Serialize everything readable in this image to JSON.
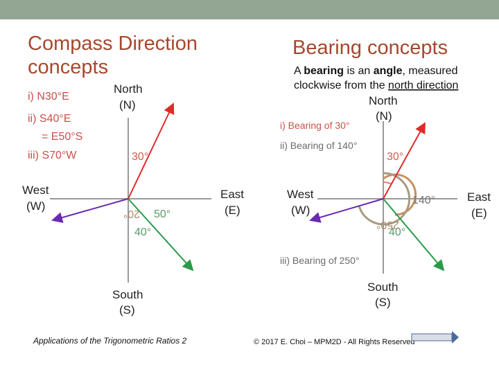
{
  "left": {
    "title": [
      "Compass Direction",
      "concepts"
    ],
    "examples": [
      "i) N30°E",
      "ii) S40°E",
      "= E50°S",
      "iii) S70°W"
    ],
    "north": [
      "North",
      "(N)"
    ],
    "west": [
      "West",
      "(W)"
    ],
    "east": [
      "East",
      "(E)"
    ],
    "south": [
      "South",
      "(S)"
    ],
    "angles": [
      "30°",
      "50°",
      "40°",
      "20°"
    ]
  },
  "right": {
    "title": "Bearing concepts",
    "definition": [
      "A ",
      "bearing",
      " is an ",
      "angle",
      ", measured",
      "clockwise from the ",
      "north direction"
    ],
    "north": [
      "North",
      "(N)"
    ],
    "west": [
      "West",
      "(W)"
    ],
    "east": [
      "East",
      "(E)"
    ],
    "south": [
      "South",
      "(S)"
    ],
    "examples": [
      "i) Bearing of 30°",
      "ii) Bearing of 140°",
      "iii) Bearing of 250°"
    ],
    "angles": [
      "30°",
      "140°",
      "40°",
      "250°"
    ]
  },
  "footer": {
    "left": "Applications of the Trigonometric Ratios 2",
    "right": "© 2017 E. Choi – MPM2D - All Rights Reserved"
  }
}
